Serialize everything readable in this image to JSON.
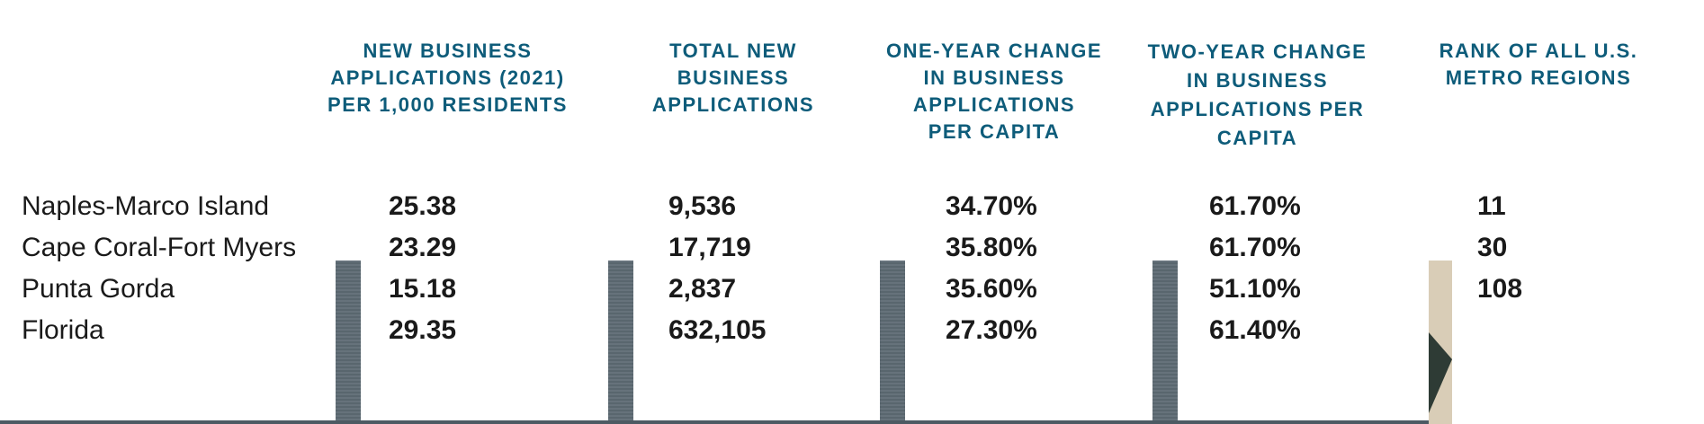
{
  "headers": [
    [
      "NEW BUSINESS",
      "APPLICATIONS (2021)",
      "PER 1,000 RESIDENTS"
    ],
    [
      "TOTAL NEW",
      "BUSINESS",
      "APPLICATIONS"
    ],
    [
      "ONE-YEAR CHANGE",
      "IN BUSINESS",
      "APPLICATIONS",
      "PER CAPITA"
    ],
    [
      "TWO-YEAR CHANGE",
      "IN BUSINESS",
      "APPLICATIONS PER",
      "CAPITA"
    ],
    [
      "RANK OF ALL U.S.",
      "METRO REGIONS"
    ]
  ],
  "rows": [
    {
      "name": "Naples-Marco Island",
      "per_1000": "25.38",
      "total": "9,536",
      "one_year": "34.70%",
      "two_year": "61.70%",
      "rank": "11"
    },
    {
      "name": "Cape Coral-Fort Myers",
      "per_1000": "23.29",
      "total": "17,719",
      "one_year": "35.80%",
      "two_year": "61.70%",
      "rank": "30"
    },
    {
      "name": "Punta Gorda",
      "per_1000": "15.18",
      "total": "2,837",
      "one_year": "35.60%",
      "two_year": "51.10%",
      "rank": "108"
    },
    {
      "name": "Florida",
      "per_1000": "29.35",
      "total": "632,105",
      "one_year": "27.30%",
      "two_year": "61.40%",
      "rank": ""
    }
  ],
  "colors": {
    "header": "#0e5c7a",
    "text": "#1a1a1a",
    "strip": "#5e6b74"
  }
}
